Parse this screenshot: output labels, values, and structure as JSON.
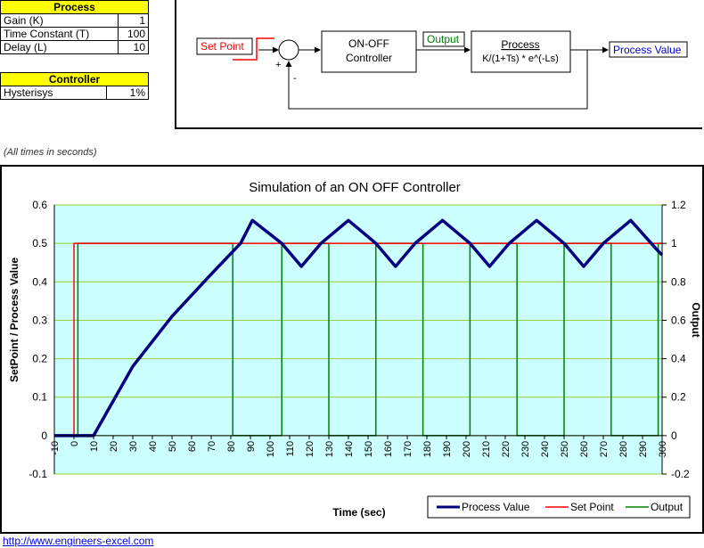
{
  "process_table": {
    "title": "Process",
    "rows": [
      {
        "label": "Gain (K)",
        "value": "1"
      },
      {
        "label": "Time Constant (T)",
        "value": "100"
      },
      {
        "label": "Delay (L)",
        "value": "10"
      }
    ]
  },
  "controller_table": {
    "title": "Controller",
    "rows": [
      {
        "label": "Hysterisys",
        "value": "1%"
      }
    ]
  },
  "block_diagram": {
    "set_point_label": "Set Point",
    "controller_label_1": "ON-OFF",
    "controller_label_2": "Controller",
    "output_label": "Output",
    "process_title": "Process",
    "process_formula": "K/(1+Ts)  * e^(-Ls)",
    "process_value_label": "Process Value",
    "plus_sign": "+",
    "minus_sign": "-"
  },
  "note": "(All times in seconds)",
  "url": "http://www.engineers-excel.com",
  "colors": {
    "plot_bg": "#ccffff",
    "process_value": "#000080",
    "set_point": "#ff0000",
    "output": "#008000",
    "gridline": "#99cc33"
  },
  "chart_data": {
    "type": "line",
    "title": "Simulation of an ON OFF Controller",
    "xlabel": "Time (sec)",
    "ylabel": "SetPoint / Process Value",
    "y2label": "Output",
    "xlim": [
      -10,
      300
    ],
    "ylim": [
      -0.1,
      0.6
    ],
    "y2lim": [
      -0.2,
      1.2
    ],
    "x_ticks": [
      -10,
      0,
      10,
      20,
      30,
      40,
      50,
      60,
      70,
      80,
      90,
      100,
      110,
      120,
      130,
      140,
      150,
      160,
      170,
      180,
      190,
      200,
      210,
      220,
      230,
      240,
      250,
      260,
      270,
      280,
      290,
      300
    ],
    "y_ticks": [
      -0.1,
      0,
      0.1,
      0.2,
      0.3,
      0.4,
      0.5,
      0.6
    ],
    "y2_ticks": [
      -0.2,
      0,
      0.2,
      0.4,
      0.6,
      0.8,
      1,
      1.2
    ],
    "grid": true,
    "legend_position": "bottom-right",
    "series": [
      {
        "name": "Process Value",
        "axis": "left",
        "x": [
          -10,
          10,
          30,
          50,
          70,
          85,
          91,
          106,
          116,
          126,
          140,
          154,
          164,
          174,
          188,
          202,
          212,
          222,
          236,
          250,
          260,
          270,
          284,
          298,
          300
        ],
        "y": [
          0,
          0,
          0.18,
          0.31,
          0.42,
          0.5,
          0.56,
          0.5,
          0.44,
          0.5,
          0.56,
          0.5,
          0.44,
          0.5,
          0.56,
          0.5,
          0.44,
          0.5,
          0.56,
          0.5,
          0.44,
          0.5,
          0.56,
          0.48,
          0.47
        ]
      },
      {
        "name": "Set Point",
        "axis": "left",
        "x": [
          -10,
          0,
          0,
          300
        ],
        "y": [
          0,
          0,
          0.5,
          0.5
        ]
      },
      {
        "name": "Output",
        "axis": "right",
        "x": [
          -10,
          2,
          2,
          81,
          81,
          106,
          106,
          130,
          130,
          154,
          154,
          178,
          178,
          202,
          202,
          226,
          226,
          250,
          250,
          274,
          274,
          298,
          298,
          300
        ],
        "y": [
          0,
          0,
          1,
          1,
          0,
          0,
          1,
          1,
          0,
          0,
          1,
          1,
          0,
          0,
          1,
          1,
          0,
          0,
          1,
          1,
          0,
          0,
          1,
          1
        ]
      }
    ]
  }
}
